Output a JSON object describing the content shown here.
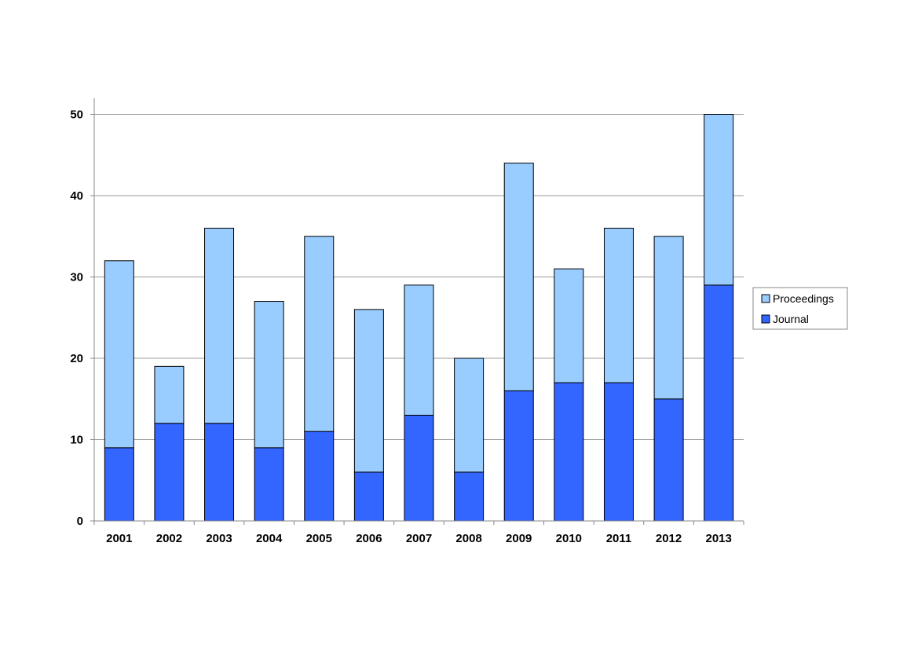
{
  "chart_data": {
    "type": "bar",
    "stacked": true,
    "title": "",
    "xlabel": "",
    "ylabel": "",
    "categories": [
      "2001",
      "2002",
      "2003",
      "2004",
      "2005",
      "2006",
      "2007",
      "2008",
      "2009",
      "2010",
      "2011",
      "2012",
      "2013"
    ],
    "series": [
      {
        "name": "Journal",
        "color": "#3366ff",
        "values": [
          9,
          12,
          12,
          9,
          11,
          6,
          13,
          6,
          16,
          17,
          17,
          15,
          29
        ]
      },
      {
        "name": "Proceedings",
        "color": "#99ccff",
        "values": [
          23,
          7,
          24,
          18,
          24,
          20,
          16,
          14,
          28,
          14,
          19,
          20,
          21
        ]
      }
    ],
    "ylim": [
      0,
      52
    ],
    "yticks": [
      0,
      10,
      20,
      30,
      40,
      50
    ],
    "grid": true,
    "legend_position": "right",
    "legend_order": [
      "Proceedings",
      "Journal"
    ]
  }
}
